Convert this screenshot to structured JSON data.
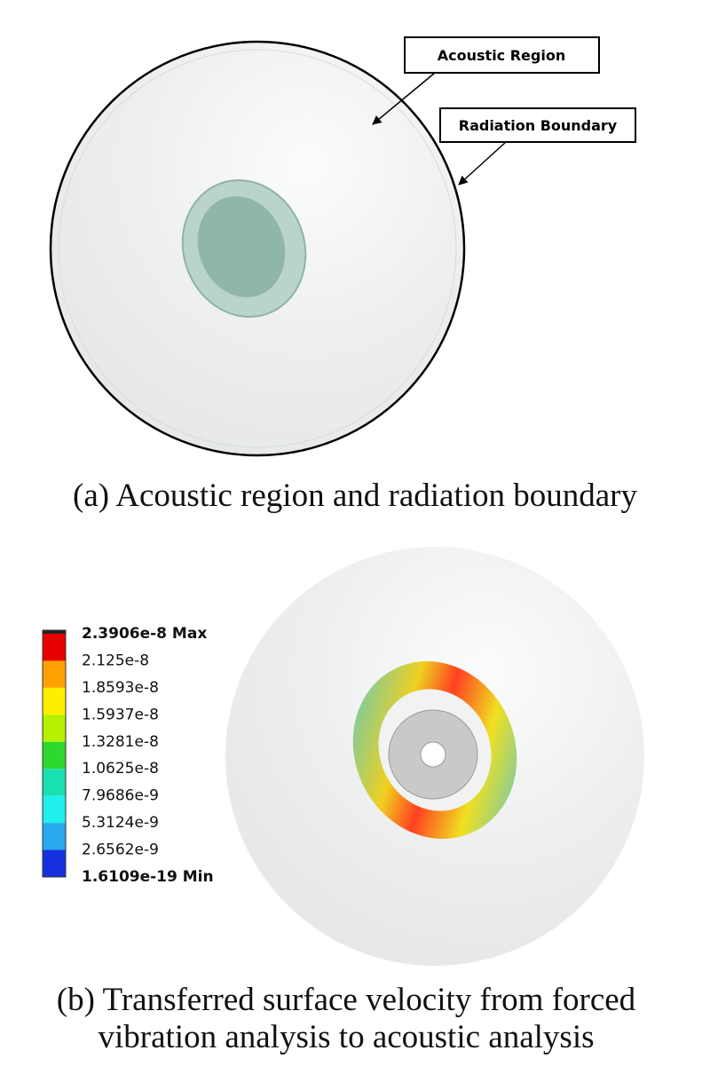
{
  "panel_a": {
    "callouts": [
      "Acoustic Region",
      "Radiation Boundary"
    ],
    "caption": "(a) Acoustic region and radiation boundary"
  },
  "panel_b": {
    "legend": {
      "labels": [
        "2.3906e-8 Max",
        "2.125e-8",
        "1.8593e-8",
        "1.5937e-8",
        "1.3281e-8",
        "1.0625e-8",
        "7.9686e-9",
        "5.3124e-9",
        "2.6562e-9",
        "1.6109e-19 Min"
      ],
      "colors": [
        "#e60000",
        "#ffa200",
        "#ffee00",
        "#b4f000",
        "#2ed82e",
        "#19e0b0",
        "#1ff0ee",
        "#2aa9ee",
        "#1530e0"
      ]
    },
    "caption_lines": [
      "(b) Transferred surface velocity from forced",
      "vibration analysis to acoustic analysis"
    ]
  }
}
